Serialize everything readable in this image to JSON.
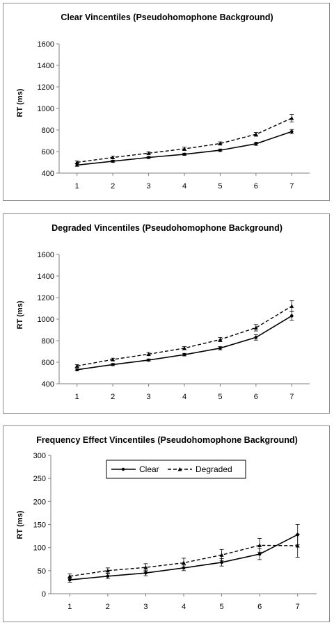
{
  "chart_data": [
    {
      "type": "line",
      "title": "Clear Vincentiles (Pseudohomophone  Background)",
      "ylabel": "RT (ms)",
      "xlabel": "",
      "categories": [
        "1",
        "2",
        "3",
        "4",
        "5",
        "6",
        "7"
      ],
      "ylim": [
        400,
        1600
      ],
      "yticks": [
        400,
        600,
        800,
        1000,
        1200,
        1400,
        1600
      ],
      "series": [
        {
          "style": "solid",
          "marker": "circle",
          "values": [
            475,
            510,
            545,
            575,
            612,
            672,
            785
          ],
          "errors": [
            12,
            10,
            10,
            10,
            12,
            15,
            20
          ]
        },
        {
          "style": "dashed",
          "marker": "triangle",
          "values": [
            500,
            545,
            585,
            625,
            675,
            760,
            910
          ],
          "errors": [
            12,
            12,
            12,
            15,
            15,
            18,
            35
          ]
        }
      ]
    },
    {
      "type": "line",
      "title": "Degraded Vincentiles (Pseudohomophone  Background)",
      "ylabel": "RT (ms)",
      "xlabel": "",
      "categories": [
        "1",
        "2",
        "3",
        "4",
        "5",
        "6",
        "7"
      ],
      "ylim": [
        400,
        1600
      ],
      "yticks": [
        400,
        600,
        800,
        1000,
        1200,
        1400,
        1600
      ],
      "series": [
        {
          "style": "solid",
          "marker": "circle",
          "values": [
            530,
            578,
            620,
            670,
            730,
            830,
            1030
          ],
          "errors": [
            10,
            10,
            10,
            12,
            15,
            25,
            40
          ]
        },
        {
          "style": "dashed",
          "marker": "triangle",
          "values": [
            565,
            625,
            675,
            730,
            810,
            920,
            1120
          ],
          "errors": [
            12,
            12,
            15,
            15,
            20,
            30,
            50
          ]
        }
      ]
    },
    {
      "type": "line",
      "title": "Frequency Effect Vincentiles (Pseudohomophone Background)",
      "ylabel": "RT (ms)",
      "xlabel": "",
      "categories": [
        "1",
        "2",
        "3",
        "4",
        "5",
        "6",
        "7"
      ],
      "ylim": [
        0,
        300
      ],
      "yticks": [
        0,
        50,
        100,
        150,
        200,
        250,
        300
      ],
      "legend": "top-left",
      "series": [
        {
          "name": "Clear",
          "style": "solid",
          "marker": "circle",
          "values": [
            30,
            38,
            45,
            56,
            68,
            86,
            128
          ],
          "errors": [
            5,
            5,
            6,
            6,
            8,
            12,
            22
          ]
        },
        {
          "name": "Degraded",
          "style": "dashed",
          "marker": "triangle",
          "values": [
            38,
            50,
            57,
            67,
            84,
            105,
            104
          ],
          "errors": [
            5,
            6,
            8,
            10,
            12,
            15,
            25
          ]
        }
      ]
    }
  ]
}
